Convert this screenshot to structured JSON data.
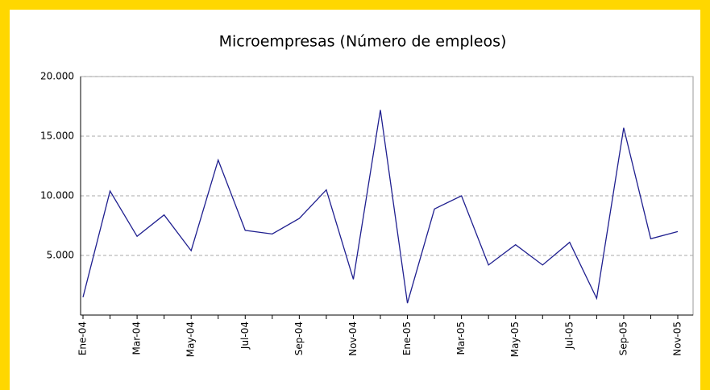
{
  "chart_data": {
    "type": "line",
    "title": "Microempresas (Número de empleos)",
    "categories": [
      "Ene-04",
      null,
      "Mar-04",
      null,
      "May-04",
      null,
      "Jul-04",
      null,
      "Sep-04",
      null,
      "Nov-04",
      null,
      "Ene-05",
      null,
      "Mar-05",
      null,
      "May-05",
      null,
      "Jul-05",
      null,
      "Sep-05",
      null,
      "Nov-05"
    ],
    "series": [
      {
        "name": "Microempresas",
        "color": "#1f1f8f",
        "values": [
          1500,
          10400,
          6600,
          8400,
          5400,
          13000,
          7100,
          6800,
          8100,
          10500,
          3000,
          17200,
          1000,
          8900,
          10000,
          4200,
          5900,
          4200,
          6100,
          1400,
          15700,
          6400,
          7000
        ]
      }
    ],
    "ylim": [
      0,
      20000
    ],
    "yticks": [
      {
        "value": 5000,
        "label": "5.000"
      },
      {
        "value": 10000,
        "label": "10.000"
      },
      {
        "value": 15000,
        "label": "15.000"
      },
      {
        "value": 20000,
        "label": "20.000"
      }
    ],
    "grid": true
  }
}
